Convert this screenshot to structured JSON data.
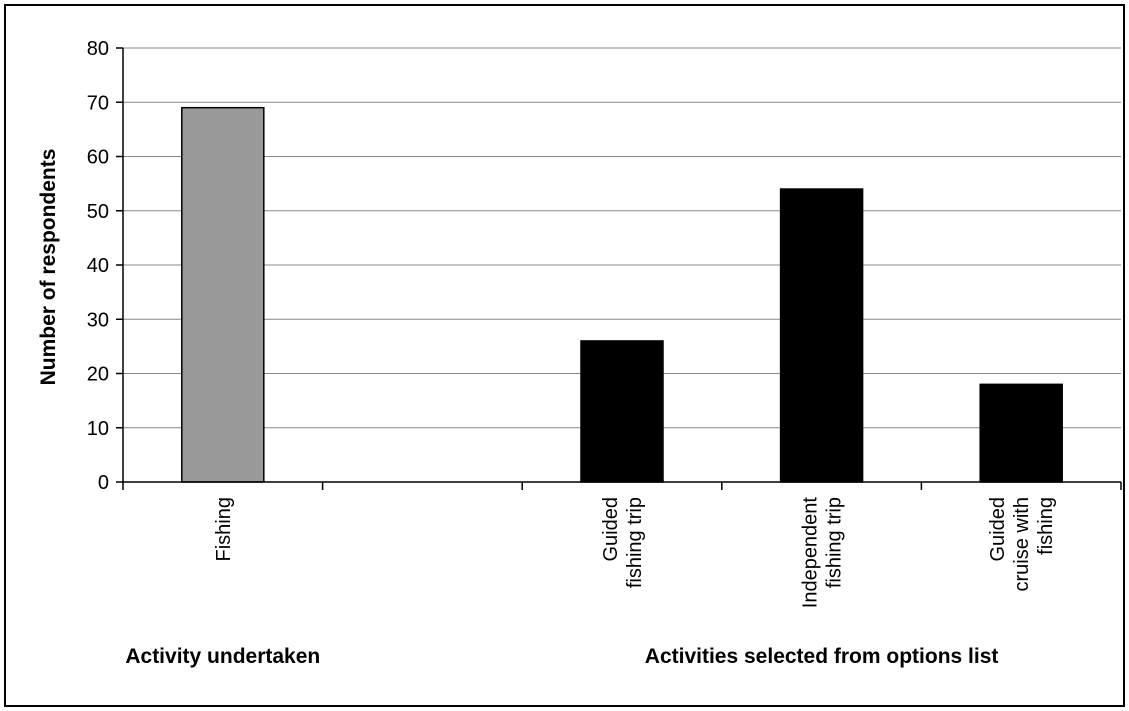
{
  "chart_data": {
    "type": "bar",
    "title": "",
    "ylabel": "Number of respondents",
    "xlabel": "",
    "ylim": [
      0,
      80
    ],
    "yticks": [
      0,
      10,
      20,
      30,
      40,
      50,
      60,
      70,
      80
    ],
    "grid": true,
    "categories": [
      [
        "Fishing"
      ],
      [],
      [
        "Guided",
        "fishing trip"
      ],
      [
        "Independent",
        "fishing trip"
      ],
      [
        "Guided",
        "cruise with",
        "fishing"
      ]
    ],
    "values": [
      69,
      null,
      26,
      54,
      18
    ],
    "bar_colors": [
      "#999999",
      null,
      "#000000",
      "#000000",
      "#000000"
    ],
    "groups": [
      {
        "label": "Activity undertaken",
        "categories": [
          0
        ]
      },
      {
        "label": "Activities selected from options list",
        "categories": [
          2,
          3,
          4
        ]
      }
    ]
  }
}
